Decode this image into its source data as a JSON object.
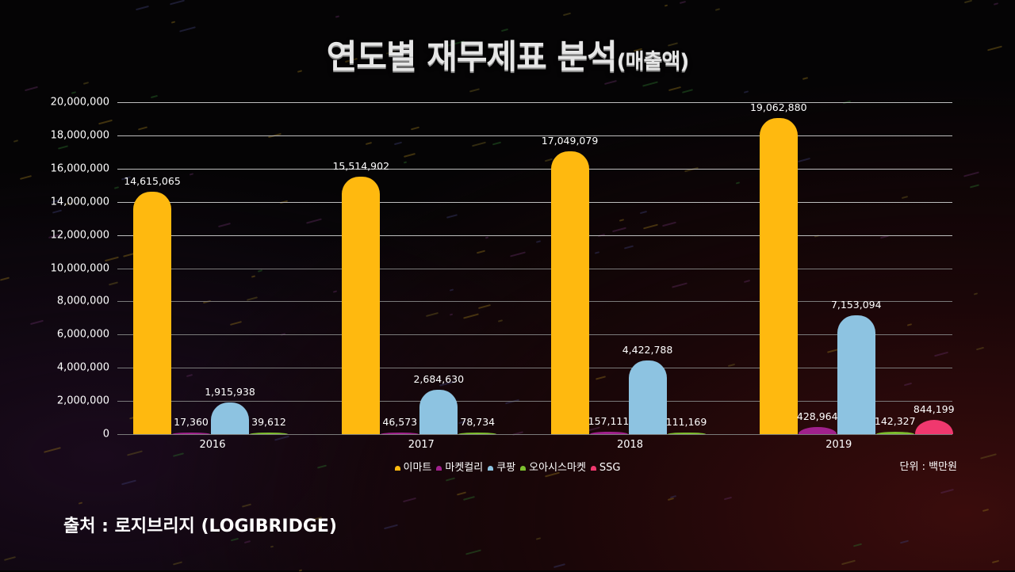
{
  "title": {
    "main": "연도별 재무제표 분석",
    "sub": "(매출액)"
  },
  "unit_note": "단위 : 백만원",
  "source": "출처 : 로지브리지 (LOGIBRIDGE)",
  "y_ticks": [
    "20,000,000",
    "18,000,000",
    "16,000,000",
    "14,000,000",
    "12,000,000",
    "10,000,000",
    "8,000,000",
    "6,000,000",
    "4,000,000",
    "2,000,000",
    "0"
  ],
  "legend": [
    {
      "name": "이마트",
      "color": "#FFB90F"
    },
    {
      "name": "마켓컬리",
      "color": "#A0218C"
    },
    {
      "name": "쿠팡",
      "color": "#8DC3E1"
    },
    {
      "name": "오아시스마켓",
      "color": "#7DBE2E"
    },
    {
      "name": "SSG",
      "color": "#F0386E"
    }
  ],
  "chart_data": {
    "type": "bar",
    "title": "연도별 재무제표 분석(매출액)",
    "xlabel": "",
    "ylabel": "",
    "unit": "백만원",
    "categories": [
      "2016",
      "2017",
      "2018",
      "2019"
    ],
    "ylim": [
      0,
      20000000
    ],
    "ytick_step": 2000000,
    "grid": true,
    "legend_position": "bottom",
    "series": [
      {
        "name": "이마트",
        "color": "#FFB90F",
        "values": [
          14615065,
          15514902,
          17049079,
          19062880
        ],
        "labels": [
          "14,615,065",
          "15,514,902",
          "17,049,079",
          "19,062,880"
        ]
      },
      {
        "name": "마켓컬리",
        "color": "#A0218C",
        "values": [
          17360,
          46573,
          157111,
          428964
        ],
        "labels": [
          "17,360",
          "46,573",
          "157,111",
          "428,964"
        ]
      },
      {
        "name": "쿠팡",
        "color": "#8DC3E1",
        "values": [
          1915938,
          2684630,
          4422788,
          7153094
        ],
        "labels": [
          "1,915,938",
          "2,684,630",
          "4,422,788",
          "7,153,094"
        ]
      },
      {
        "name": "오아시스마켓",
        "color": "#7DBE2E",
        "values": [
          39612,
          78734,
          111169,
          142327
        ],
        "labels": [
          "39,612",
          "78,734",
          "111,169",
          "142,327"
        ]
      },
      {
        "name": "SSG",
        "color": "#F0386E",
        "values": [
          null,
          null,
          null,
          844199
        ],
        "labels": [
          "",
          "",
          "",
          "844,199"
        ]
      }
    ]
  }
}
